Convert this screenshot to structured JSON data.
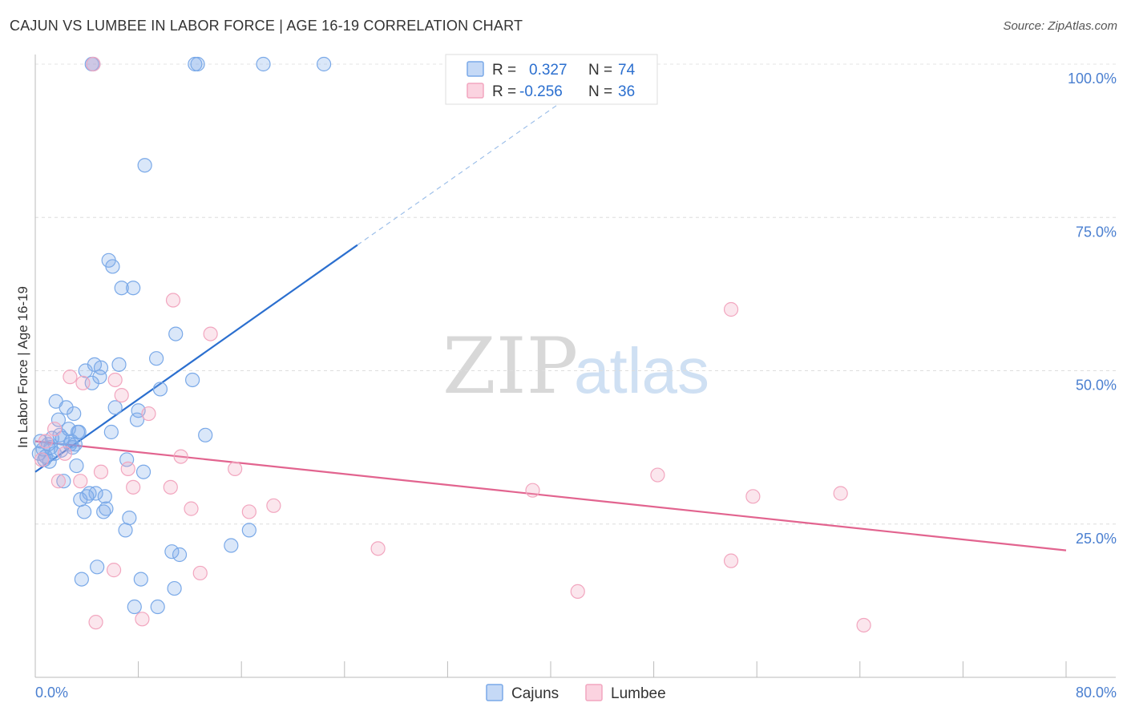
{
  "title": "CAJUN VS LUMBEE IN LABOR FORCE | AGE 16-19 CORRELATION CHART",
  "source": "Source: ZipAtlas.com",
  "watermark": {
    "zip": "ZIP",
    "atlas": "atlas"
  },
  "colors": {
    "cajuns": "#7aa9e8",
    "cajuns_line": "#2b6fcf",
    "lumbee": "#f2a6bf",
    "lumbee_line": "#e2648f",
    "tick": "#4a7fd0"
  },
  "stats": {
    "r_label": "R =",
    "n_label": "N =",
    "cajuns": {
      "r": "0.327",
      "n": "74"
    },
    "lumbee": {
      "r": "-0.256",
      "n": "36"
    }
  },
  "chart_data": {
    "type": "scatter",
    "title": "CAJUN VS LUMBEE IN LABOR FORCE | AGE 16-19 CORRELATION CHART",
    "xlabel": "",
    "ylabel": "In Labor Force | Age 16-19",
    "xlim": [
      0,
      80
    ],
    "ylim": [
      0,
      102
    ],
    "x_tick_labels": [
      "0.0%",
      "80.0%"
    ],
    "y_ticks": [
      25,
      50,
      75,
      100
    ],
    "y_tick_labels": [
      "25.0%",
      "50.0%",
      "75.0%",
      "100.0%"
    ],
    "legend": [
      "Cajuns",
      "Lumbee"
    ],
    "series": [
      {
        "name": "Cajuns",
        "r": 0.327,
        "n": 74,
        "trend": {
          "x0": 0,
          "y0": 33.5,
          "x1": 25,
          "y1": 70.5,
          "dash_to_x": 43,
          "dash_to_y": 97
        },
        "points": [
          [
            0.4,
            38.5
          ],
          [
            0.6,
            37.2
          ],
          [
            0.8,
            36.0
          ],
          [
            1.0,
            38.0
          ],
          [
            1.1,
            35.2
          ],
          [
            1.3,
            39.0
          ],
          [
            1.5,
            36.5
          ],
          [
            1.6,
            45.0
          ],
          [
            1.8,
            42.0
          ],
          [
            1.9,
            39.5
          ],
          [
            2.0,
            37.0
          ],
          [
            2.2,
            32.0
          ],
          [
            2.4,
            44.0
          ],
          [
            2.6,
            40.5
          ],
          [
            2.8,
            38.5
          ],
          [
            2.9,
            37.5
          ],
          [
            3.0,
            43.0
          ],
          [
            3.1,
            38.0
          ],
          [
            3.2,
            34.5
          ],
          [
            3.4,
            40.0
          ],
          [
            3.5,
            29.0
          ],
          [
            3.6,
            16.0
          ],
          [
            3.8,
            27.0
          ],
          [
            3.9,
            50.0
          ],
          [
            4.0,
            29.5
          ],
          [
            4.2,
            30.0
          ],
          [
            4.4,
            48.0
          ],
          [
            4.6,
            51.0
          ],
          [
            4.7,
            30.0
          ],
          [
            4.8,
            18.0
          ],
          [
            5.0,
            49.0
          ],
          [
            5.1,
            50.5
          ],
          [
            5.3,
            27.0
          ],
          [
            5.4,
            29.5
          ],
          [
            5.5,
            27.5
          ],
          [
            5.7,
            68.0
          ],
          [
            5.9,
            40.0
          ],
          [
            6.0,
            67.0
          ],
          [
            6.2,
            44.0
          ],
          [
            6.5,
            51.0
          ],
          [
            6.7,
            63.5
          ],
          [
            7.0,
            24.0
          ],
          [
            7.1,
            35.5
          ],
          [
            7.3,
            26.0
          ],
          [
            7.6,
            63.5
          ],
          [
            7.7,
            11.5
          ],
          [
            7.9,
            42.0
          ],
          [
            8.0,
            43.5
          ],
          [
            8.2,
            16.0
          ],
          [
            8.4,
            33.5
          ],
          [
            8.5,
            83.5
          ],
          [
            9.4,
            52.0
          ],
          [
            9.5,
            11.5
          ],
          [
            9.7,
            47.0
          ],
          [
            10.6,
            20.5
          ],
          [
            10.8,
            14.5
          ],
          [
            10.9,
            56.0
          ],
          [
            11.2,
            20.0
          ],
          [
            12.2,
            48.5
          ],
          [
            12.4,
            100
          ],
          [
            12.6,
            100
          ],
          [
            13.2,
            39.5
          ],
          [
            15.2,
            21.5
          ],
          [
            16.6,
            24.0
          ],
          [
            17.7,
            100
          ],
          [
            22.4,
            100
          ],
          [
            4.4,
            100
          ],
          [
            4.5,
            100
          ],
          [
            0.3,
            36.5
          ],
          [
            0.7,
            35.5
          ],
          [
            1.2,
            37.5
          ],
          [
            2.1,
            39.0
          ],
          [
            2.7,
            38.0
          ],
          [
            3.3,
            40.0
          ]
        ]
      },
      {
        "name": "Lumbee",
        "r": -0.256,
        "n": 36,
        "trend": {
          "x0": 0,
          "y0": 38.5,
          "x1": 80,
          "y1": 20.7
        },
        "points": [
          [
            0.5,
            35.5
          ],
          [
            0.8,
            38.5
          ],
          [
            1.5,
            40.5
          ],
          [
            1.8,
            32.0
          ],
          [
            2.3,
            36.5
          ],
          [
            2.7,
            49.0
          ],
          [
            3.5,
            32.0
          ],
          [
            3.7,
            48.0
          ],
          [
            4.5,
            100
          ],
          [
            4.7,
            9.0
          ],
          [
            5.1,
            33.5
          ],
          [
            6.1,
            17.5
          ],
          [
            6.2,
            48.5
          ],
          [
            6.7,
            46.0
          ],
          [
            7.2,
            34.0
          ],
          [
            7.6,
            31.0
          ],
          [
            8.3,
            9.5
          ],
          [
            8.8,
            43.0
          ],
          [
            10.5,
            31.0
          ],
          [
            10.7,
            61.5
          ],
          [
            11.3,
            36.0
          ],
          [
            12.1,
            27.5
          ],
          [
            12.8,
            17.0
          ],
          [
            13.6,
            56.0
          ],
          [
            15.5,
            34.0
          ],
          [
            16.6,
            27.0
          ],
          [
            18.5,
            28.0
          ],
          [
            26.6,
            21.0
          ],
          [
            38.6,
            30.5
          ],
          [
            42.1,
            14.0
          ],
          [
            48.3,
            33.0
          ],
          [
            54.0,
            60.0
          ],
          [
            54.0,
            19.0
          ],
          [
            55.7,
            29.5
          ],
          [
            62.5,
            30.0
          ],
          [
            64.3,
            8.5
          ]
        ]
      }
    ]
  }
}
